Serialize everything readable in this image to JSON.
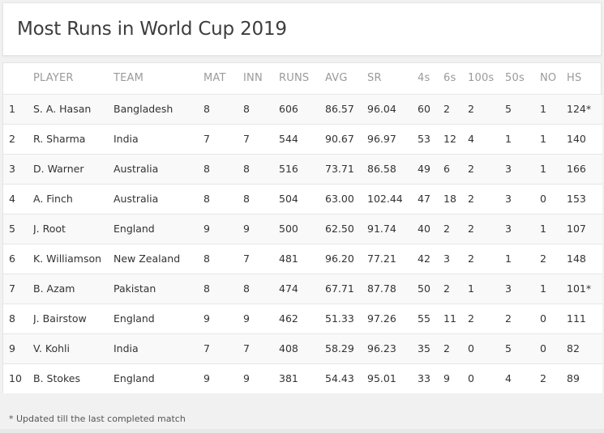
{
  "title": "Most Runs in World Cup 2019",
  "table": {
    "columns": [
      "",
      "PLAYER",
      "TEAM",
      "MAT",
      "INN",
      "RUNS",
      "AVG",
      "SR",
      "4s",
      "6s",
      "100s",
      "50s",
      "NO",
      "HS"
    ],
    "rows": [
      [
        "1",
        "S. A. Hasan",
        "Bangladesh",
        "8",
        "8",
        "606",
        "86.57",
        "96.04",
        "60",
        "2",
        "2",
        "5",
        "1",
        "124*"
      ],
      [
        "2",
        "R. Sharma",
        "India",
        "7",
        "7",
        "544",
        "90.67",
        "96.97",
        "53",
        "12",
        "4",
        "1",
        "1",
        "140"
      ],
      [
        "3",
        "D. Warner",
        "Australia",
        "8",
        "8",
        "516",
        "73.71",
        "86.58",
        "49",
        "6",
        "2",
        "3",
        "1",
        "166"
      ],
      [
        "4",
        "A. Finch",
        "Australia",
        "8",
        "8",
        "504",
        "63.00",
        "102.44",
        "47",
        "18",
        "2",
        "3",
        "0",
        "153"
      ],
      [
        "5",
        "J. Root",
        "England",
        "9",
        "9",
        "500",
        "62.50",
        "91.74",
        "40",
        "2",
        "2",
        "3",
        "1",
        "107"
      ],
      [
        "6",
        "K. Williamson",
        "New Zealand",
        "8",
        "7",
        "481",
        "96.20",
        "77.21",
        "42",
        "3",
        "2",
        "1",
        "2",
        "148"
      ],
      [
        "7",
        "B. Azam",
        "Pakistan",
        "8",
        "8",
        "474",
        "67.71",
        "87.78",
        "50",
        "2",
        "1",
        "3",
        "1",
        "101*"
      ],
      [
        "8",
        "J. Bairstow",
        "England",
        "9",
        "9",
        "462",
        "51.33",
        "97.26",
        "55",
        "11",
        "2",
        "2",
        "0",
        "111"
      ],
      [
        "9",
        "V. Kohli",
        "India",
        "7",
        "7",
        "408",
        "58.29",
        "96.23",
        "35",
        "2",
        "0",
        "5",
        "0",
        "82"
      ],
      [
        "10",
        "B. Stokes",
        "England",
        "9",
        "9",
        "381",
        "54.43",
        "95.01",
        "33",
        "9",
        "0",
        "4",
        "2",
        "89"
      ]
    ]
  },
  "footnote": "* Updated till the last completed match",
  "colors": {
    "page_background": "#f1f1f1",
    "card_background": "#ffffff",
    "striped_row": "#f9f9f9",
    "header_text": "#9a9a9a",
    "body_text": "#333333"
  }
}
